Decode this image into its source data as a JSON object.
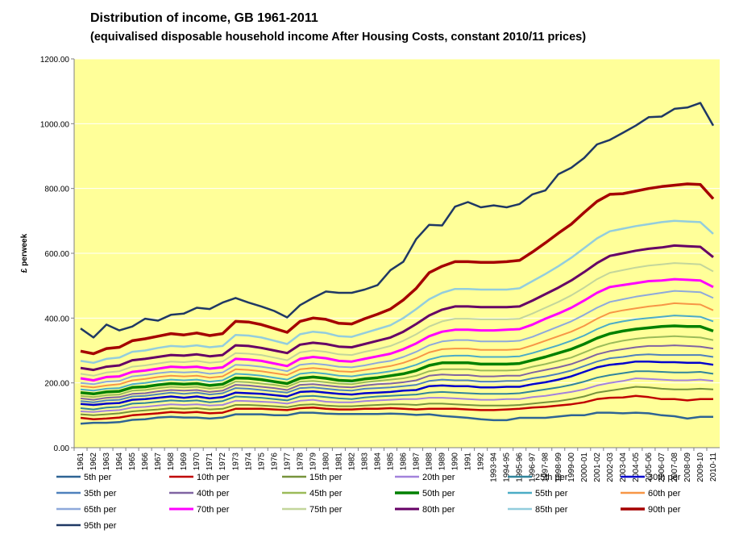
{
  "chart_data": {
    "type": "line",
    "title": "Distribution of income, GB 1961-2011",
    "subtitle": "(equivalised  disposable household income After Housing Costs, constant 2010/11 prices)",
    "xlabel": "",
    "ylabel": "£ perweek",
    "ylim": [
      0,
      1200
    ],
    "yticks": [
      "0.00",
      "200.00",
      "400.00",
      "600.00",
      "800.00",
      "1000.00",
      "1200.00"
    ],
    "ytick_values": [
      0,
      200,
      400,
      600,
      800,
      1000,
      1200
    ],
    "grid": true,
    "legend_position": "bottom",
    "categories": [
      "1961",
      "1962",
      "1963",
      "1964",
      "1965",
      "1966",
      "1967",
      "1968",
      "1969",
      "1970",
      "1971",
      "1972",
      "1973",
      "1974",
      "1975",
      "1976",
      "1977",
      "1978",
      "1979",
      "1980",
      "1981",
      "1982",
      "1983",
      "1984",
      "1985",
      "1986",
      "1987",
      "1988",
      "1989",
      "1990",
      "1991",
      "1992",
      "1993-94",
      "1994-95",
      "1995-96",
      "1996-97",
      "1997-98",
      "1998-99",
      "1999-00",
      "2000-01",
      "2001-02",
      "2002-03",
      "2003-04",
      "2004-05",
      "2005-06",
      "2006-07",
      "2007-08",
      "2008-09",
      "2009-10",
      "2010-11"
    ],
    "series": [
      {
        "name": "5th per",
        "color": "#2e6494",
        "width": 2.5,
        "values": [
          74,
          77,
          77,
          79,
          86,
          88,
          93,
          95,
          93,
          93,
          90,
          93,
          103,
          103,
          103,
          100,
          100,
          108,
          108,
          105,
          104,
          104,
          104,
          104,
          105,
          104,
          101,
          103,
          98,
          95,
          92,
          88,
          85,
          85,
          92,
          92,
          92,
          96,
          100,
          100,
          108,
          108,
          106,
          108,
          106,
          100,
          97,
          90,
          95,
          95
        ]
      },
      {
        "name": "10th per",
        "color": "#c00000",
        "width": 2.5,
        "values": [
          92,
          88,
          90,
          93,
          100,
          103,
          106,
          110,
          108,
          110,
          106,
          108,
          120,
          120,
          120,
          118,
          116,
          122,
          124,
          120,
          118,
          118,
          120,
          120,
          122,
          120,
          118,
          120,
          120,
          120,
          118,
          116,
          116,
          118,
          120,
          124,
          126,
          130,
          134,
          140,
          150,
          154,
          155,
          160,
          156,
          150,
          150,
          146,
          150,
          150
        ]
      },
      {
        "name": "15th per",
        "color": "#77933c",
        "width": 2,
        "values": [
          103,
          100,
          103,
          106,
          112,
          115,
          118,
          122,
          120,
          122,
          118,
          120,
          132,
          132,
          130,
          128,
          125,
          132,
          134,
          130,
          128,
          128,
          130,
          132,
          134,
          134,
          132,
          136,
          136,
          134,
          132,
          130,
          130,
          130,
          132,
          136,
          140,
          144,
          150,
          158,
          170,
          176,
          182,
          188,
          186,
          182,
          180,
          180,
          182,
          180
        ]
      },
      {
        "name": "20th per",
        "color": "#a382dc",
        "width": 2,
        "values": [
          112,
          110,
          114,
          116,
          124,
          126,
          130,
          134,
          132,
          134,
          130,
          132,
          145,
          144,
          142,
          140,
          136,
          145,
          148,
          142,
          140,
          140,
          144,
          146,
          148,
          150,
          150,
          154,
          154,
          152,
          150,
          148,
          148,
          150,
          150,
          156,
          160,
          166,
          172,
          180,
          192,
          200,
          206,
          214,
          212,
          210,
          208,
          208,
          210,
          206
        ]
      },
      {
        "name": "25th per",
        "color": "#31849b",
        "width": 2,
        "values": [
          122,
          118,
          124,
          126,
          136,
          138,
          142,
          146,
          144,
          146,
          140,
          144,
          158,
          156,
          154,
          150,
          146,
          158,
          160,
          156,
          152,
          150,
          155,
          158,
          160,
          162,
          164,
          170,
          172,
          170,
          168,
          166,
          166,
          166,
          168,
          174,
          180,
          186,
          194,
          204,
          216,
          224,
          230,
          236,
          236,
          234,
          232,
          232,
          234,
          228
        ]
      },
      {
        "name": "30th per",
        "color": "#0000cc",
        "width": 2.5,
        "values": [
          135,
          132,
          136,
          138,
          148,
          150,
          154,
          158,
          154,
          158,
          152,
          156,
          170,
          168,
          166,
          162,
          158,
          172,
          174,
          170,
          166,
          164,
          168,
          170,
          172,
          176,
          178,
          190,
          192,
          190,
          190,
          186,
          186,
          188,
          188,
          196,
          202,
          210,
          220,
          234,
          248,
          256,
          260,
          266,
          266,
          264,
          264,
          262,
          262,
          256
        ]
      },
      {
        "name": "35th per",
        "color": "#4f81bd",
        "width": 2,
        "values": [
          144,
          140,
          146,
          148,
          158,
          160,
          165,
          170,
          166,
          170,
          164,
          168,
          184,
          182,
          178,
          174,
          170,
          184,
          186,
          182,
          178,
          176,
          182,
          184,
          186,
          190,
          194,
          206,
          210,
          208,
          208,
          204,
          204,
          206,
          206,
          214,
          220,
          228,
          238,
          252,
          266,
          276,
          280,
          286,
          288,
          286,
          286,
          286,
          286,
          280
        ]
      },
      {
        "name": "40th per",
        "color": "#8064a2",
        "width": 2,
        "values": [
          152,
          148,
          154,
          156,
          166,
          168,
          174,
          178,
          176,
          178,
          172,
          176,
          194,
          192,
          188,
          184,
          178,
          194,
          196,
          192,
          188,
          186,
          192,
          196,
          198,
          202,
          208,
          222,
          226,
          224,
          224,
          220,
          220,
          222,
          222,
          232,
          240,
          248,
          258,
          272,
          288,
          298,
          304,
          310,
          314,
          314,
          316,
          314,
          312,
          306
        ]
      },
      {
        "name": "45th per",
        "color": "#9bbb59",
        "width": 2,
        "values": [
          160,
          156,
          162,
          164,
          176,
          178,
          184,
          188,
          186,
          188,
          182,
          186,
          204,
          202,
          198,
          194,
          188,
          204,
          206,
          202,
          198,
          196,
          202,
          206,
          210,
          214,
          222,
          236,
          242,
          242,
          242,
          238,
          238,
          238,
          240,
          250,
          258,
          268,
          278,
          294,
          310,
          322,
          330,
          336,
          340,
          342,
          344,
          342,
          340,
          332
        ]
      },
      {
        "name": "50th per",
        "color": "#008000",
        "width": 3.5,
        "values": [
          170,
          166,
          172,
          174,
          186,
          188,
          194,
          198,
          196,
          198,
          192,
          196,
          215,
          214,
          210,
          204,
          198,
          214,
          218,
          214,
          208,
          206,
          212,
          216,
          222,
          228,
          238,
          254,
          262,
          262,
          262,
          258,
          258,
          258,
          260,
          270,
          280,
          292,
          304,
          320,
          338,
          352,
          360,
          366,
          370,
          374,
          376,
          374,
          374,
          360
        ]
      },
      {
        "name": "55th per",
        "color": "#4bacc6",
        "width": 2,
        "values": [
          180,
          176,
          182,
          184,
          196,
          200,
          206,
          210,
          208,
          210,
          204,
          208,
          228,
          226,
          222,
          216,
          210,
          228,
          232,
          228,
          222,
          220,
          226,
          230,
          236,
          244,
          256,
          272,
          282,
          284,
          284,
          280,
          280,
          280,
          282,
          292,
          304,
          316,
          330,
          346,
          366,
          382,
          390,
          396,
          400,
          404,
          408,
          406,
          404,
          390
        ]
      },
      {
        "name": "60th per",
        "color": "#f79646",
        "width": 2,
        "values": [
          190,
          186,
          192,
          196,
          208,
          212,
          218,
          222,
          220,
          222,
          216,
          220,
          242,
          240,
          236,
          230,
          224,
          242,
          246,
          242,
          236,
          234,
          240,
          246,
          252,
          262,
          276,
          294,
          304,
          306,
          306,
          302,
          302,
          302,
          304,
          316,
          330,
          344,
          358,
          376,
          398,
          416,
          424,
          430,
          436,
          440,
          446,
          444,
          442,
          424
        ]
      },
      {
        "name": "65th per",
        "color": "#8ea9db",
        "width": 2,
        "values": [
          200,
          196,
          204,
          206,
          220,
          224,
          230,
          234,
          232,
          234,
          228,
          232,
          256,
          254,
          250,
          244,
          236,
          256,
          260,
          256,
          250,
          248,
          254,
          262,
          268,
          280,
          296,
          316,
          328,
          332,
          332,
          328,
          328,
          328,
          330,
          342,
          358,
          374,
          390,
          410,
          432,
          450,
          458,
          466,
          472,
          478,
          484,
          482,
          480,
          462
        ]
      },
      {
        "name": "70th per",
        "color": "#ff00ff",
        "width": 3,
        "values": [
          214,
          208,
          218,
          220,
          234,
          238,
          244,
          250,
          248,
          250,
          244,
          248,
          274,
          272,
          268,
          260,
          252,
          274,
          280,
          276,
          268,
          266,
          274,
          282,
          290,
          304,
          322,
          344,
          358,
          364,
          364,
          362,
          362,
          364,
          366,
          380,
          398,
          414,
          432,
          454,
          478,
          496,
          502,
          508,
          514,
          516,
          520,
          518,
          516,
          496
        ]
      },
      {
        "name": "75th per",
        "color": "#c3d69b",
        "width": 2,
        "values": [
          228,
          222,
          232,
          236,
          250,
          254,
          260,
          266,
          264,
          268,
          262,
          266,
          292,
          290,
          286,
          278,
          270,
          294,
          300,
          296,
          288,
          286,
          296,
          304,
          314,
          330,
          350,
          374,
          390,
          398,
          398,
          396,
          396,
          396,
          398,
          414,
          432,
          450,
          470,
          494,
          520,
          540,
          548,
          556,
          562,
          566,
          570,
          568,
          566,
          544
        ]
      },
      {
        "name": "80th per",
        "color": "#660066",
        "width": 3,
        "values": [
          246,
          240,
          250,
          254,
          270,
          274,
          280,
          286,
          284,
          288,
          282,
          286,
          316,
          314,
          308,
          300,
          292,
          318,
          324,
          320,
          312,
          310,
          320,
          330,
          340,
          358,
          382,
          408,
          426,
          436,
          436,
          434,
          434,
          434,
          436,
          454,
          474,
          494,
          516,
          542,
          570,
          592,
          600,
          608,
          614,
          618,
          624,
          622,
          620,
          588
        ]
      },
      {
        "name": "85th per",
        "color": "#93cddd",
        "width": 2.5,
        "values": [
          268,
          262,
          274,
          278,
          296,
          300,
          308,
          314,
          312,
          316,
          310,
          314,
          348,
          346,
          340,
          330,
          320,
          350,
          358,
          354,
          344,
          342,
          354,
          366,
          378,
          400,
          428,
          458,
          478,
          490,
          490,
          488,
          488,
          488,
          492,
          514,
          536,
          560,
          586,
          616,
          646,
          668,
          676,
          684,
          690,
          696,
          700,
          698,
          696,
          660
        ]
      },
      {
        "name": "90th per",
        "color": "#a50000",
        "width": 3.5,
        "values": [
          298,
          290,
          306,
          310,
          330,
          336,
          344,
          352,
          348,
          354,
          346,
          352,
          390,
          388,
          380,
          368,
          356,
          390,
          400,
          396,
          384,
          382,
          398,
          412,
          428,
          456,
          492,
          540,
          560,
          574,
          574,
          572,
          572,
          574,
          578,
          604,
          632,
          662,
          690,
          726,
          760,
          782,
          784,
          792,
          800,
          806,
          810,
          814,
          812,
          768
        ]
      },
      {
        "name": "95th per",
        "color": "#1f3864",
        "width": 2.5,
        "values": [
          368,
          340,
          380,
          362,
          374,
          398,
          392,
          410,
          414,
          432,
          428,
          448,
          462,
          448,
          436,
          422,
          402,
          440,
          462,
          482,
          478,
          478,
          488,
          502,
          548,
          574,
          644,
          688,
          686,
          744,
          758,
          742,
          748,
          742,
          752,
          782,
          794,
          844,
          864,
          894,
          936,
          950,
          972,
          994,
          1020,
          1022,
          1046,
          1050,
          1064,
          994
        ]
      }
    ]
  }
}
